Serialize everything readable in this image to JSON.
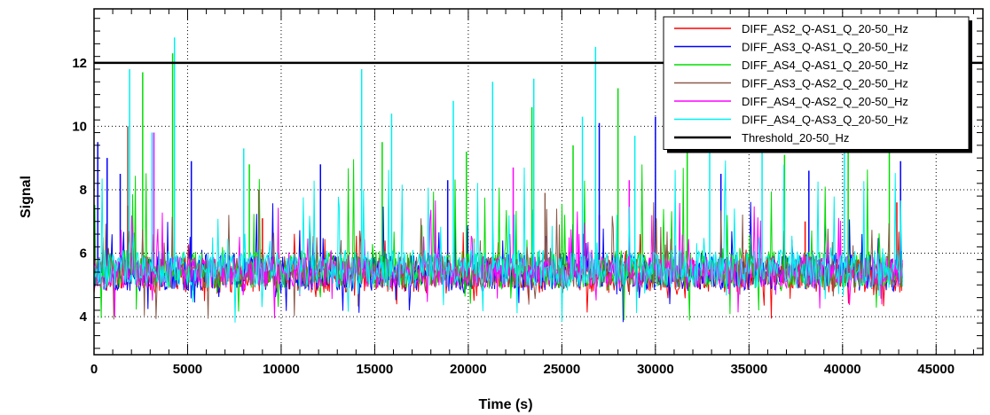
{
  "chart_data": {
    "type": "line",
    "title": "",
    "xlabel": "Time (s)",
    "ylabel": "Signal",
    "xlim": [
      0,
      47500
    ],
    "ylim": [
      2.8,
      13.7
    ],
    "x_ticks": [
      0,
      5000,
      10000,
      15000,
      20000,
      25000,
      30000,
      35000,
      40000,
      45000
    ],
    "x_tick_labels": [
      "0",
      "5000",
      "10000",
      "15000",
      "20000",
      "25000",
      "30000",
      "35000",
      "40000",
      "45000"
    ],
    "y_ticks": [
      4,
      6,
      8,
      10,
      12
    ],
    "y_tick_labels": [
      "4",
      "6",
      "8",
      "10",
      "12"
    ],
    "grid": true,
    "legend_position": "top-right",
    "x_data_end": 43200,
    "series": [
      {
        "name": "DIFF_AS2_Q-AS1_Q_20-50_Hz",
        "color": "#ff0000",
        "baseline": 5.3,
        "spread": 0.55,
        "typical_max": 7.6,
        "spikes": [
          [
            1800,
            7.5
          ],
          [
            9000,
            7.1
          ],
          [
            27000,
            7.2
          ],
          [
            38000,
            7.0
          ],
          [
            42900,
            7.6
          ]
        ]
      },
      {
        "name": "DIFF_AS3_Q-AS1_Q_20-50_Hz",
        "color": "#0000ff",
        "baseline": 5.4,
        "spread": 0.6,
        "typical_max": 9.5,
        "spikes": [
          [
            200,
            9.5
          ],
          [
            700,
            9.0
          ],
          [
            1400,
            8.5
          ],
          [
            5200,
            8.9
          ],
          [
            12100,
            8.8
          ],
          [
            18900,
            8.3
          ],
          [
            27000,
            10.1
          ],
          [
            30000,
            10.3
          ],
          [
            33500,
            8.5
          ],
          [
            38200,
            8.6
          ],
          [
            43100,
            8.9
          ]
        ]
      },
      {
        "name": "DIFF_AS4_Q-AS1_Q_20-50_Hz",
        "color": "#00dd00",
        "baseline": 5.5,
        "spread": 0.6,
        "typical_max": 12.8,
        "spikes": [
          [
            2600,
            11.7
          ],
          [
            4200,
            12.3
          ],
          [
            8300,
            8.8
          ],
          [
            15400,
            9.5
          ],
          [
            19900,
            9.2
          ],
          [
            23400,
            10.6
          ],
          [
            25600,
            9.4
          ],
          [
            28000,
            11.2
          ],
          [
            31700,
            10.1
          ],
          [
            36900,
            9.1
          ],
          [
            40300,
            9.3
          ],
          [
            42500,
            10.4
          ]
        ]
      },
      {
        "name": "DIFF_AS3_Q-AS2_Q_20-50_Hz",
        "color": "#8b5a4a",
        "baseline": 5.4,
        "spread": 0.5,
        "typical_max": 10.0,
        "spikes": [
          [
            1800,
            10.0
          ],
          [
            8800,
            8.0
          ],
          [
            24100,
            7.9
          ]
        ]
      },
      {
        "name": "DIFF_AS4_Q-AS2_Q_20-50_Hz",
        "color": "#ff00ff",
        "baseline": 5.4,
        "spread": 0.5,
        "typical_max": 9.9,
        "spikes": [
          [
            3200,
            9.8
          ],
          [
            22400,
            8.7
          ],
          [
            28600,
            8.3
          ]
        ]
      },
      {
        "name": "DIFF_AS4_Q-AS3_Q_20-50_Hz",
        "color": "#00f0f0",
        "baseline": 5.5,
        "spread": 0.6,
        "typical_max": 12.8,
        "spikes": [
          [
            1900,
            11.8
          ],
          [
            3100,
            9.8
          ],
          [
            4300,
            12.8
          ],
          [
            8000,
            9.3
          ],
          [
            14300,
            11.8
          ],
          [
            15900,
            10.4
          ],
          [
            19200,
            10.8
          ],
          [
            21300,
            11.4
          ],
          [
            23500,
            11.5
          ],
          [
            26100,
            10.3
          ],
          [
            26800,
            12.5
          ],
          [
            28900,
            9.7
          ],
          [
            32900,
            11.0
          ],
          [
            35700,
            10.6
          ],
          [
            40100,
            10.9
          ]
        ]
      },
      {
        "name": "Threshold_20-50_Hz",
        "color": "#000000",
        "constant": 12
      }
    ]
  }
}
